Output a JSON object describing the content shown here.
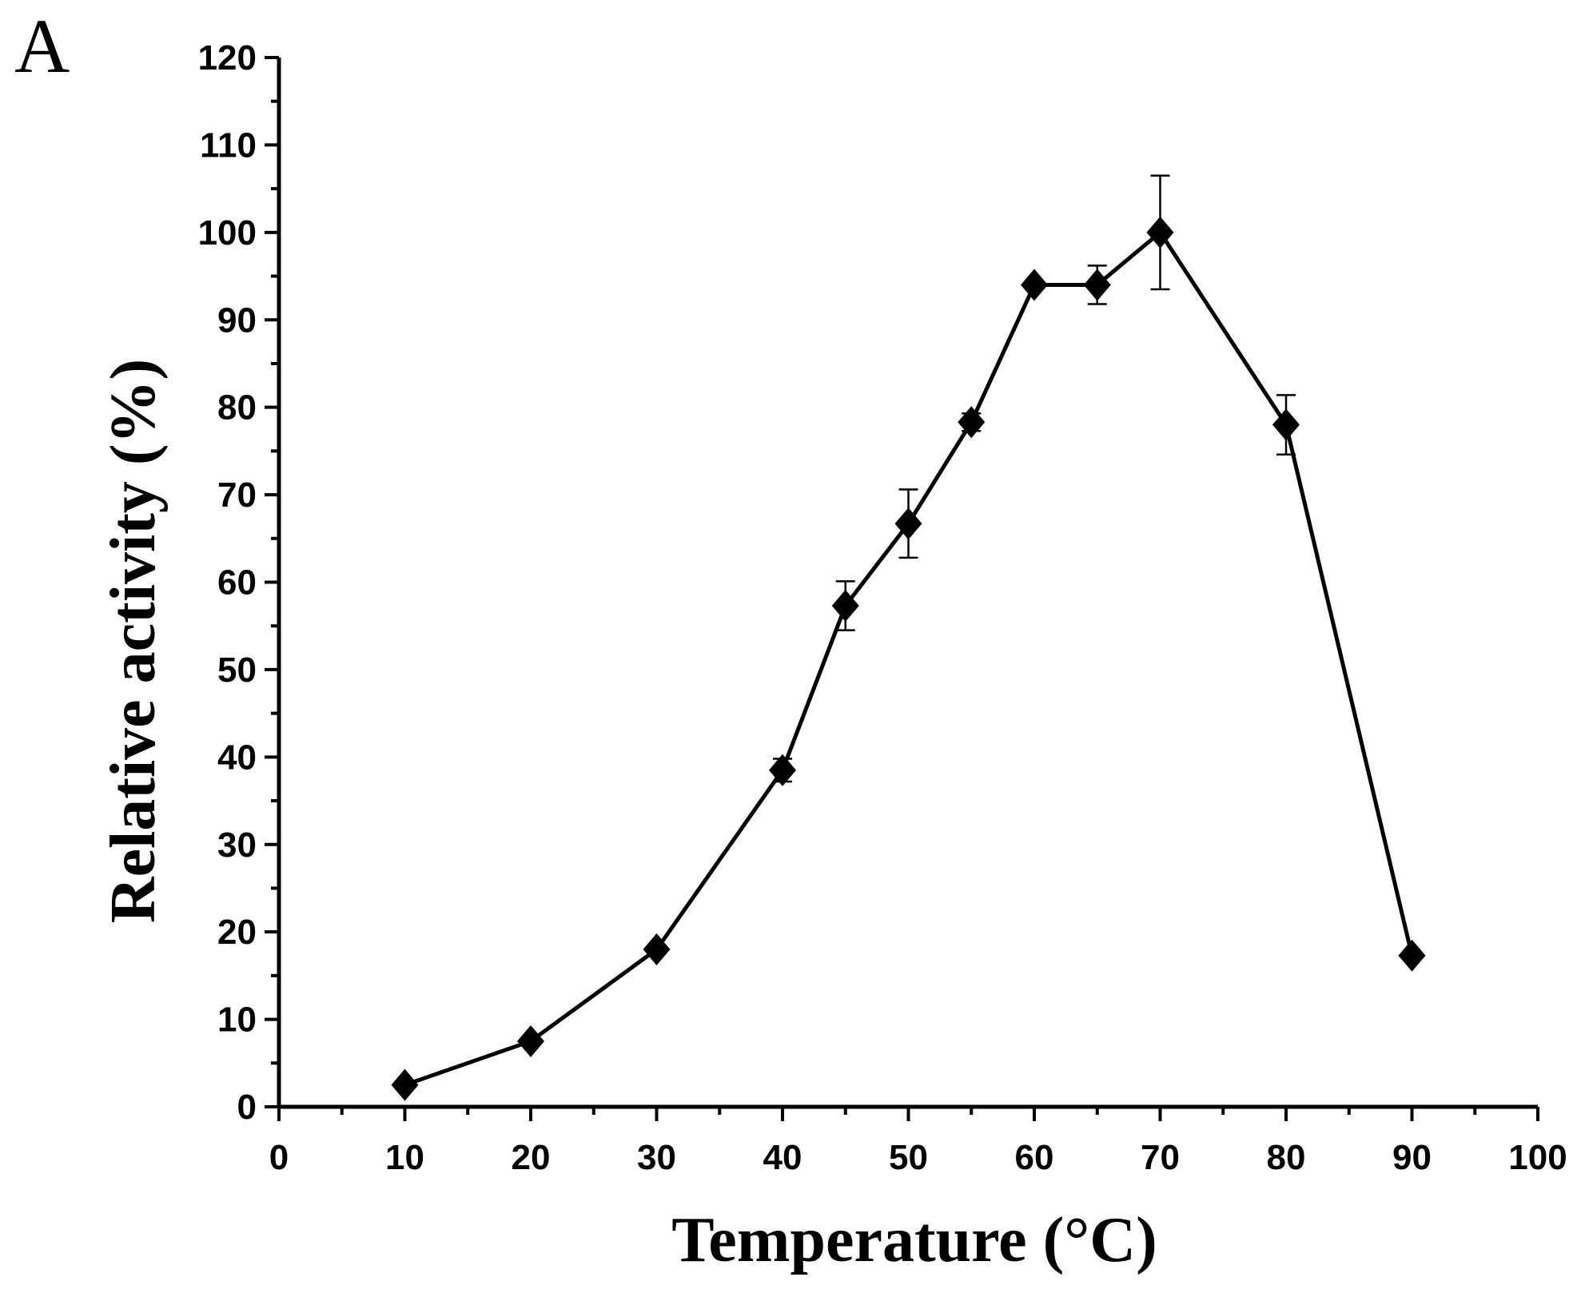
{
  "panel_label": "A",
  "chart_data": {
    "type": "line",
    "xlabel": "Temperature (°C)",
    "ylabel": "Relative activity (%)",
    "xlim": [
      0,
      100
    ],
    "ylim": [
      0,
      120
    ],
    "x_ticks": [
      0,
      10,
      20,
      30,
      40,
      50,
      60,
      70,
      80,
      90,
      100
    ],
    "y_ticks": [
      0,
      10,
      20,
      30,
      40,
      50,
      60,
      70,
      80,
      90,
      100,
      110,
      120
    ],
    "x_tick_labels": [
      "0",
      "10",
      "20",
      "30",
      "40",
      "50",
      "60",
      "70",
      "80",
      "90",
      "100"
    ],
    "y_tick_labels": [
      "0",
      "10",
      "20",
      "30",
      "40",
      "50",
      "60",
      "70",
      "80",
      "90",
      "100",
      "110",
      "120"
    ],
    "grid": false,
    "marker": "diamond",
    "series": [
      {
        "name": "Relative activity",
        "x": [
          10,
          20,
          30,
          40,
          45,
          50,
          55,
          60,
          65,
          70,
          80,
          90
        ],
        "y": [
          2.5,
          7.5,
          18,
          38.5,
          57.3,
          66.7,
          78.3,
          94,
          94,
          100,
          78,
          17.3
        ],
        "error": [
          0,
          0,
          0,
          1.3,
          2.8,
          3.9,
          1,
          0,
          2.2,
          6.5,
          3.4,
          0
        ]
      }
    ]
  }
}
